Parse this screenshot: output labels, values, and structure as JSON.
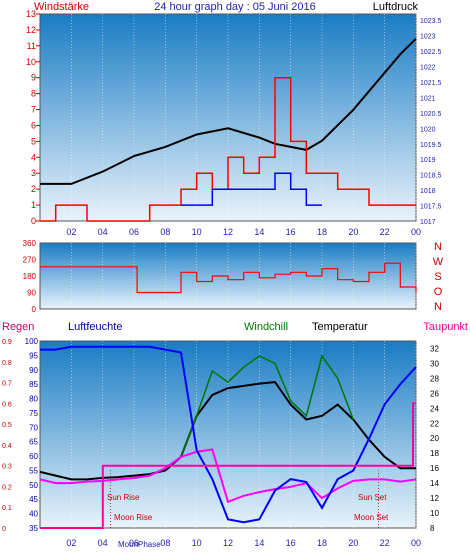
{
  "header": {
    "left_title": "Windstärke",
    "center_title": "24 hour graph day : 05 Juni 2016",
    "right_title": "Luftdruck"
  },
  "bottom_header": {
    "regen": "Regen",
    "luftfeuchte": "Luftfeuchte",
    "windchill": "Windchill",
    "temperatur": "Temperatur",
    "taupunkt": "Taupunkt"
  },
  "annotations": {
    "sun_rise": "Sun Rise",
    "moon_rise": "Moon Rise",
    "sun_set": "Sun Set",
    "moon_set": "Moon Set",
    "moon_phase": "MoonPhase"
  },
  "colors": {
    "panel_gradient_top": "#1a7cc4",
    "panel_gradient_bottom": "#e8f3fb",
    "wind": "#ff0000",
    "gust": "#0000ff",
    "pressure": "#000000",
    "temperature": "#000000",
    "windchill": "#007700",
    "dewpoint": "#ff00ff",
    "humidity": "#0000ff",
    "rain": "#ff00a0",
    "left_axis": "#cc0000",
    "humidity_axis": "#0000aa"
  },
  "chart_data": [
    {
      "type": "line",
      "title": "24 hour graph day : 05 Juni 2016",
      "xlabel": "",
      "x_ticks": [
        "02",
        "04",
        "06",
        "08",
        "10",
        "12",
        "14",
        "16",
        "18",
        "20",
        "22",
        "00"
      ],
      "y_left_label": "Windstärke",
      "y_left_ticks": [
        0,
        1,
        2,
        3,
        4,
        5,
        6,
        7,
        8,
        9,
        10,
        11,
        12,
        13
      ],
      "ylim_left": [
        0,
        13
      ],
      "y_right_label": "Luftdruck",
      "y_right_ticks": [
        1017,
        1017.5,
        1018,
        1018.5,
        1019,
        1019.5,
        1020,
        1020.5,
        1021,
        1021.5,
        1022,
        1022.5,
        1023,
        1023.5
      ],
      "ylim_right": [
        1017,
        1023.7
      ],
      "series": [
        {
          "name": "Luftdruck",
          "hours": [
            0,
            2,
            4,
            6,
            8,
            10,
            12,
            14,
            15,
            16,
            17,
            18,
            19,
            20,
            21,
            22,
            23,
            24
          ],
          "values": [
            1018.2,
            1018.2,
            1018.6,
            1019.1,
            1019.4,
            1019.8,
            1020.0,
            1019.7,
            1019.5,
            1019.4,
            1019.3,
            1019.6,
            1020.1,
            1020.6,
            1021.2,
            1021.8,
            1022.4,
            1022.9
          ]
        },
        {
          "name": "Windstärke",
          "hours": [
            0,
            1,
            2,
            3,
            4,
            5,
            6,
            7,
            8,
            9,
            10,
            11,
            12,
            13,
            14,
            15,
            16,
            17,
            18,
            19,
            20,
            21,
            22,
            23,
            24
          ],
          "values": [
            0,
            1,
            1,
            0,
            0,
            0,
            0,
            1,
            1,
            2,
            3,
            2,
            4,
            3,
            4,
            9,
            5,
            3,
            3,
            2,
            2,
            1,
            1,
            1,
            1
          ]
        },
        {
          "name": "Böen",
          "hours": [
            9,
            10,
            11,
            12,
            13,
            14,
            15,
            16,
            17,
            18
          ],
          "values": [
            1,
            1,
            2,
            2,
            2,
            2,
            3,
            2,
            1,
            1
          ]
        }
      ]
    },
    {
      "type": "line",
      "title": "",
      "x_ticks": [],
      "y_left_ticks": [
        0,
        90,
        180,
        270,
        360
      ],
      "ylim": [
        0,
        360
      ],
      "direction_labels": [
        "N",
        "W",
        "S",
        "O",
        "N"
      ],
      "series": [
        {
          "name": "",
          "hours": [
            0,
            0.5,
            1,
            6,
            6.2,
            8,
            9,
            10,
            11,
            12,
            13,
            14,
            15,
            16,
            17,
            18,
            19,
            20,
            21,
            22,
            23,
            24
          ],
          "values": [
            230,
            230,
            230,
            230,
            90,
            90,
            200,
            150,
            180,
            160,
            200,
            170,
            190,
            200,
            180,
            220,
            160,
            150,
            200,
            250,
            120,
            90
          ]
        }
      ]
    },
    {
      "type": "line",
      "title": "",
      "x_ticks": [
        "02",
        "04",
        "06",
        "08",
        "10",
        "12",
        "14",
        "16",
        "18",
        "20",
        "22",
        "00"
      ],
      "y_left_label": "Luftfeuchte",
      "y_left_ticks": [
        35,
        40,
        45,
        50,
        55,
        60,
        65,
        70,
        75,
        80,
        85,
        90,
        95,
        100
      ],
      "ylim_left": [
        35,
        100
      ],
      "y_rain_label": "Regen",
      "y_rain_ticks": [
        0,
        0.1,
        0.2,
        0.3,
        0.4,
        0.5,
        0.6,
        0.7,
        0.8,
        0.9
      ],
      "y_right_label": "Taupunkt",
      "y_right_ticks": [
        8,
        10,
        12,
        14,
        16,
        18,
        20,
        22,
        24,
        26,
        28,
        30,
        32
      ],
      "ylim_right": [
        8,
        33
      ],
      "series": [
        {
          "name": "Temperatur",
          "hours": [
            0,
            1,
            2,
            3,
            4,
            5,
            6,
            7,
            8,
            9,
            10,
            11,
            12,
            13,
            14,
            15,
            16,
            17,
            18,
            19,
            20,
            21,
            22,
            23,
            24
          ],
          "values": [
            15.5,
            15.0,
            14.5,
            14.5,
            14.7,
            14.8,
            15.0,
            15.2,
            15.7,
            17.5,
            23.0,
            25.8,
            26.7,
            27.0,
            27.3,
            27.5,
            24.5,
            22.5,
            23.0,
            24.5,
            22.5,
            19.8,
            17.5,
            16.0,
            16.0
          ]
        },
        {
          "name": "Windchill",
          "hours": [
            9,
            10,
            11,
            12,
            13,
            14,
            15,
            16,
            17,
            18,
            19,
            20
          ],
          "values": [
            17.5,
            23.0,
            29.0,
            27.5,
            29.5,
            31.0,
            30.0,
            25.0,
            23.0,
            31.0,
            28.0,
            22.5
          ]
        },
        {
          "name": "Taupunkt",
          "hours": [
            0,
            1,
            2,
            3,
            4,
            5,
            6,
            7,
            8,
            9,
            10,
            11,
            12,
            13,
            14,
            15,
            16,
            17,
            18,
            19,
            20,
            21,
            22,
            23,
            24
          ],
          "values": [
            14.5,
            14.0,
            14.0,
            14.2,
            14.3,
            14.5,
            14.7,
            15.0,
            16.0,
            17.5,
            18.2,
            18.5,
            11.5,
            12.3,
            12.8,
            13.2,
            13.5,
            14.0,
            12.0,
            13.3,
            14.3,
            14.5,
            14.5,
            14.2,
            14.5
          ]
        },
        {
          "name": "Luftfeuchte",
          "hours": [
            0,
            1,
            2,
            3,
            4,
            5,
            6,
            7,
            8,
            9,
            10,
            11,
            12,
            13,
            14,
            15,
            16,
            17,
            18,
            19,
            20,
            21,
            22,
            23,
            24
          ],
          "values": [
            97,
            97,
            98,
            98,
            98,
            98,
            98,
            98,
            97,
            96,
            62,
            52,
            38,
            37,
            38,
            48,
            52,
            51,
            42,
            52,
            55,
            66,
            78,
            85,
            91
          ]
        },
        {
          "name": "Regen",
          "hours": [
            0,
            4,
            4.01,
            23.8,
            23.81,
            24
          ],
          "values": [
            0,
            0,
            0.3,
            0.3,
            0.6,
            0.6
          ]
        }
      ],
      "markers": {
        "sun_rise_hour": 4.5,
        "moon_rise_hour": 4.6,
        "sun_set_hour": 21.6,
        "moon_set_hour": 21.3
      }
    }
  ]
}
